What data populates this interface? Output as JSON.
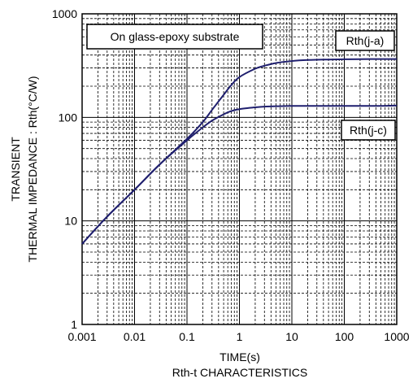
{
  "chart_data": {
    "type": "line",
    "title": "",
    "caption": "Rth-t CHARACTERISTICS",
    "xlabel": "TIME(s)",
    "ylabel_line1": "TRANSIENT",
    "ylabel_line2": "THERMAL IMPEDANCE : Rth(°C/W)",
    "x_scale": "log",
    "y_scale": "log",
    "xlim": [
      0.001,
      1000
    ],
    "ylim": [
      1,
      1000
    ],
    "x_ticks": [
      "0.001",
      "0.01",
      "0.1",
      "1",
      "10",
      "100",
      "1000"
    ],
    "y_ticks": [
      "1",
      "10",
      "100",
      "1000"
    ],
    "grid": "dashed minor, solid major",
    "annotation": "On glass-epoxy substrate",
    "line_color": "#1f1f6e",
    "series": [
      {
        "name": "Rth(j-a)",
        "x": [
          0.001,
          0.003,
          0.01,
          0.03,
          0.1,
          0.2,
          0.3,
          0.5,
          0.7,
          1,
          2,
          3,
          5,
          10,
          20,
          50,
          100,
          200,
          500,
          1000
        ],
        "y": [
          6.0,
          11.0,
          20.0,
          35.0,
          62.0,
          90.0,
          118,
          165,
          205,
          245,
          295,
          315,
          335,
          350,
          358,
          362,
          364,
          365,
          366,
          366
        ]
      },
      {
        "name": "Rth(j-c)",
        "x": [
          0.001,
          0.003,
          0.01,
          0.03,
          0.1,
          0.2,
          0.3,
          0.5,
          0.7,
          1,
          2,
          3,
          5,
          10,
          20,
          50,
          100,
          200,
          500,
          1000
        ],
        "y": [
          6.0,
          11.0,
          20.0,
          35.0,
          60.0,
          80.0,
          93.0,
          107,
          115,
          120,
          125,
          127,
          128,
          129,
          129,
          129,
          129,
          129,
          129,
          130
        ]
      }
    ]
  }
}
